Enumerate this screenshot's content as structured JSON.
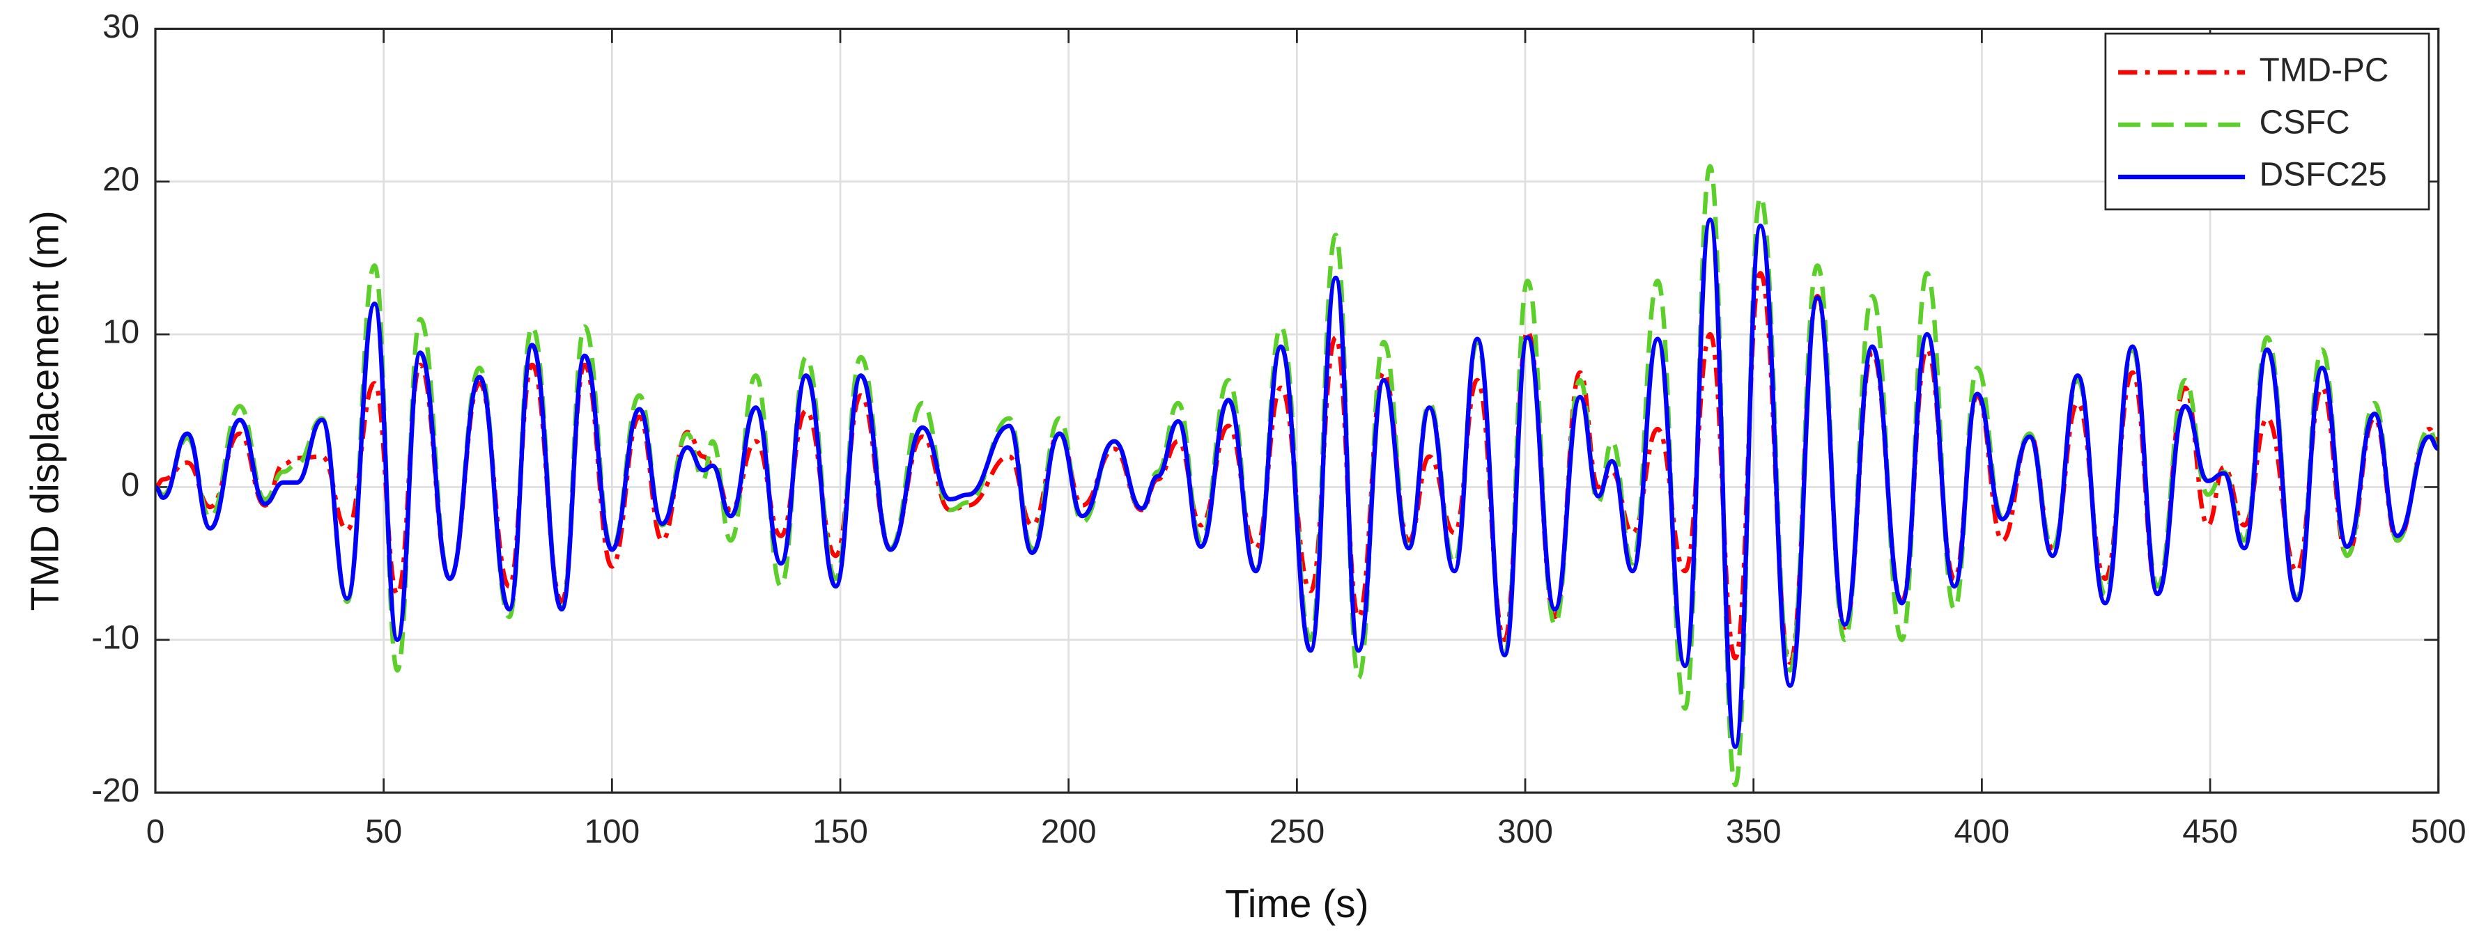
{
  "chart_data": {
    "type": "line",
    "xlabel": "Time (s)",
    "ylabel": "TMD displacement (m)",
    "xlim": [
      0,
      500
    ],
    "xticks": [
      0,
      50,
      100,
      150,
      200,
      250,
      300,
      350,
      400,
      450,
      500
    ],
    "ylim": [
      -20,
      30
    ],
    "yticks": [
      -20,
      -10,
      0,
      10,
      20,
      30
    ],
    "grid": true,
    "legend": "upper right",
    "x": [
      0,
      1.7,
      7,
      12,
      18.5,
      24,
      28,
      31,
      36.5,
      42,
      48,
      53,
      58,
      64.5,
      71,
      77.5,
      82.5,
      89,
      94,
      100,
      106,
      111,
      116.5,
      120,
      122,
      126,
      131.5,
      137,
      142.5,
      149,
      154.5,
      161,
      168,
      174,
      178,
      187,
      192,
      198,
      203,
      210,
      216,
      219.5,
      224,
      229,
      235,
      241,
      246.5,
      253,
      258.5,
      263.5,
      269,
      274.5,
      279,
      284.5,
      289.5,
      295.5,
      300.5,
      306.5,
      312,
      316,
      319,
      323.5,
      329,
      335,
      340.5,
      346,
      351.5,
      358,
      364,
      370,
      376,
      382.5,
      388,
      394,
      399,
      404.5,
      410.5,
      415.5,
      421,
      427,
      433,
      438.5,
      444.5,
      449.5,
      453,
      457.5,
      462.5,
      469,
      474.5,
      480,
      486,
      491,
      498,
      500
    ],
    "series": [
      {
        "name": "TMD-PC",
        "color": "#ff0000",
        "style": "dashdot",
        "values": [
          0,
          0.5,
          1.6,
          -1.3,
          3.5,
          -1.2,
          1.5,
          1.9,
          2,
          -2.8,
          6.8,
          -7,
          8,
          -6,
          6.8,
          -6.5,
          8,
          -7.5,
          8,
          -5.2,
          4.6,
          -3.5,
          3.6,
          2,
          1.5,
          -1.5,
          3,
          -3.2,
          5,
          -4.5,
          6,
          -4,
          3.3,
          -1.5,
          -1.2,
          2,
          -2.5,
          3.5,
          -1.2,
          2.5,
          -1.5,
          0.5,
          3,
          -2.5,
          4,
          -4,
          6.5,
          -6.8,
          9.8,
          -8.5,
          7.5,
          -3.5,
          2,
          -3,
          7,
          -10,
          10.2,
          -8.5,
          7.5,
          0,
          1,
          -3,
          3.8,
          -5.5,
          10,
          -11.2,
          14,
          -11.5,
          12.5,
          -9.2,
          8.8,
          -7.5,
          9,
          -6,
          6,
          -3.5,
          3.5,
          -4,
          5.5,
          -6,
          7.5,
          -7,
          6.5,
          -2.5,
          1.3,
          -2.5,
          4.5,
          -5.5,
          6.5,
          -4.5,
          4.5,
          -3.5,
          3.8,
          3
        ]
      },
      {
        "name": "CSFC",
        "color": "#5ccf2a",
        "style": "dashed",
        "values": [
          0,
          -0.5,
          3.2,
          -2,
          5.3,
          -0.8,
          1,
          1.5,
          4.5,
          -7.5,
          14.5,
          -12,
          11,
          -6,
          7.8,
          -8.5,
          10.5,
          -8,
          10.5,
          -4,
          6,
          -2.5,
          3.5,
          0.5,
          3,
          -3.5,
          7.3,
          -6.5,
          8.5,
          -6,
          8.5,
          -4,
          5.5,
          -1.5,
          -1,
          4.5,
          -4,
          4.5,
          -2.3,
          3,
          -1.5,
          1,
          5.5,
          -3.5,
          7,
          -5.5,
          10.5,
          -10,
          16.5,
          -12.5,
          9.5,
          -4,
          5.5,
          -5,
          9.5,
          -11,
          13.5,
          -9,
          7,
          -1,
          3,
          -5,
          13.5,
          -14.5,
          21,
          -19.5,
          19,
          -12,
          14.5,
          -10,
          12.5,
          -10,
          14,
          -8,
          7.8,
          -2,
          3.5,
          -4,
          7,
          -7,
          9,
          -6.5,
          7,
          -0.5,
          1,
          -3.5,
          9.8,
          -7.3,
          9,
          -4.5,
          5.5,
          -3.5,
          3.8,
          2.5
        ]
      },
      {
        "name": "DSFC25",
        "color": "#0000ff",
        "style": "solid",
        "values": [
          0,
          -0.7,
          3.5,
          -2.7,
          4.4,
          -1.1,
          0.3,
          0.3,
          4.4,
          -7.3,
          12,
          -10,
          8.8,
          -6,
          7.2,
          -8,
          9.3,
          -8,
          8.6,
          -4.1,
          5.1,
          -2.4,
          2.6,
          1.1,
          1.4,
          -1.9,
          5.2,
          -5,
          7.3,
          -6.5,
          7.3,
          -4.1,
          3.9,
          -0.8,
          -0.5,
          4,
          -4.3,
          3.5,
          -1.9,
          3,
          -1.4,
          0.7,
          4.3,
          -3.9,
          5.7,
          -5.5,
          9.2,
          -10.7,
          13.7,
          -10.7,
          7,
          -4,
          5.2,
          -5.5,
          9.7,
          -11,
          9.8,
          -8,
          5.9,
          -0.6,
          1.7,
          -5.5,
          9.7,
          -11.7,
          17.5,
          -17,
          17.1,
          -13,
          12.4,
          -9,
          9.2,
          -7.6,
          10,
          -6.5,
          6.1,
          -2.1,
          3.3,
          -4.5,
          7.3,
          -7.6,
          9.2,
          -7,
          5.3,
          0.4,
          0.9,
          -4,
          9,
          -7.4,
          7.8,
          -3.9,
          4.8,
          -3.2,
          3.3,
          2.5
        ]
      }
    ]
  }
}
